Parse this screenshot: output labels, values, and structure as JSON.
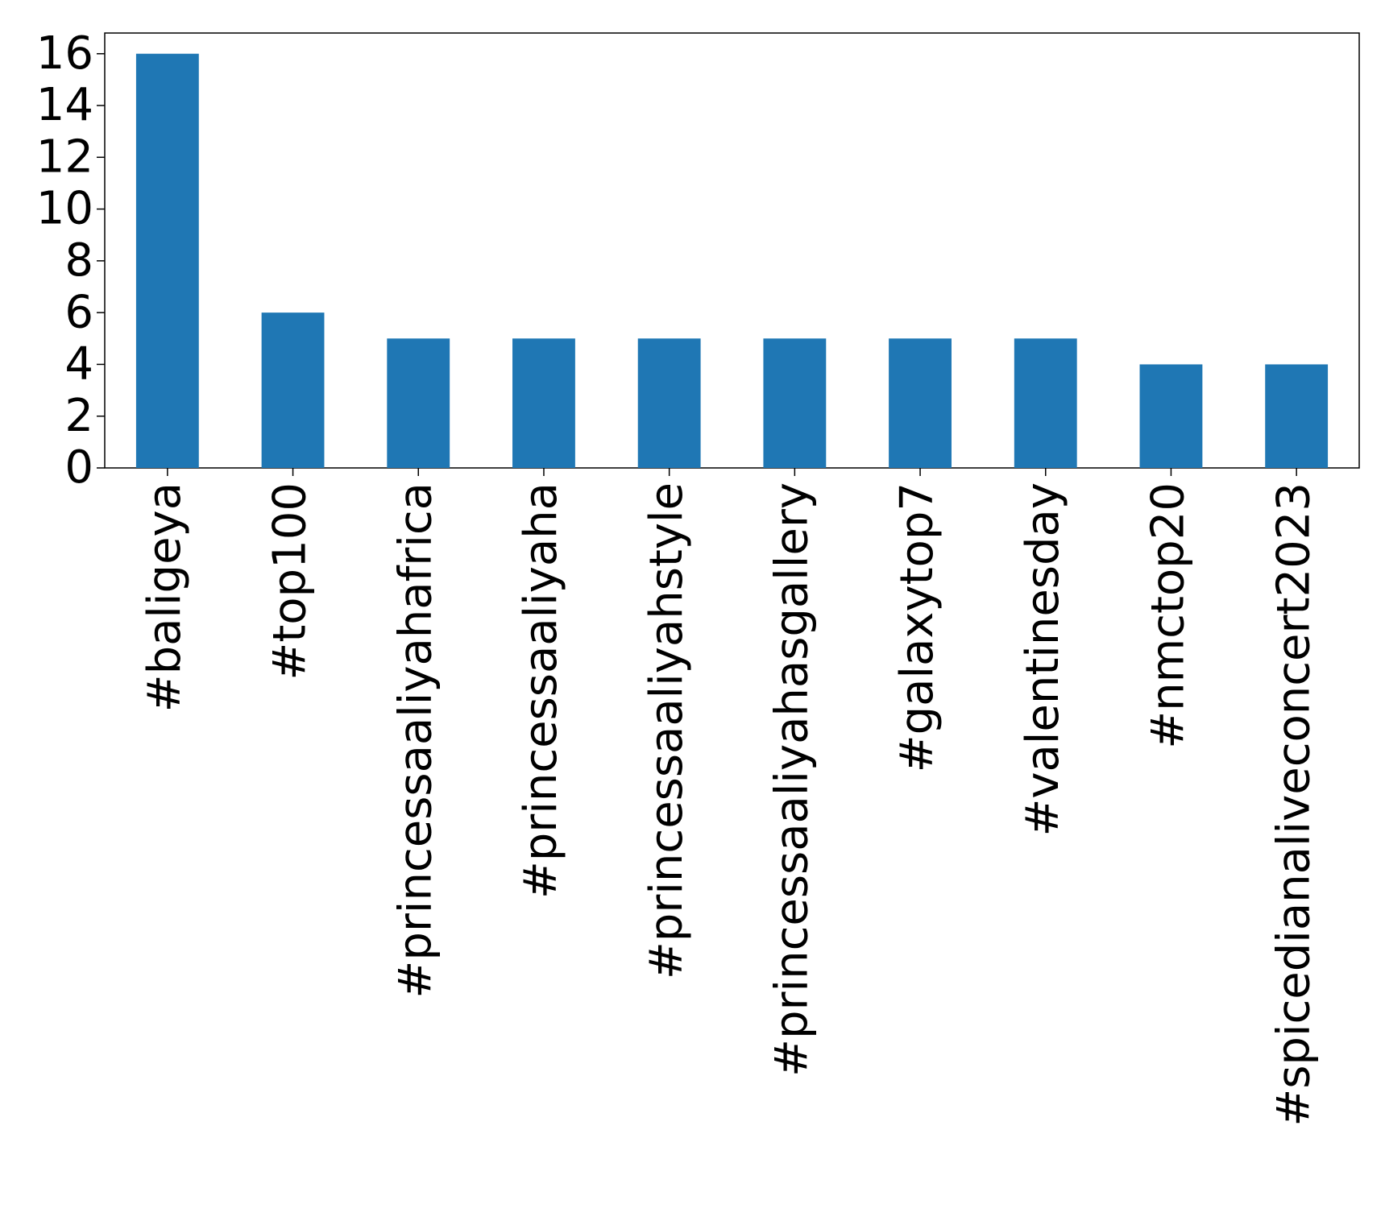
{
  "chart_data": {
    "type": "bar",
    "categories": [
      "#baligeya",
      "#top100",
      "#princessaaliyahafrica",
      "#princessaaliyaha",
      "#princessaaliyahstyle",
      "#princessaaliyahasgallery",
      "#galaxytop7",
      "#valentinesday",
      "#nmctop20",
      "#spicedianaliveconcert2023"
    ],
    "values": [
      16,
      6,
      5,
      5,
      5,
      5,
      5,
      5,
      4,
      4
    ],
    "color": "#1f77b4",
    "ylim": [
      0,
      16.8
    ],
    "yticks": [
      0,
      2,
      4,
      6,
      8,
      10,
      12,
      14,
      16
    ],
    "grid": false
  }
}
